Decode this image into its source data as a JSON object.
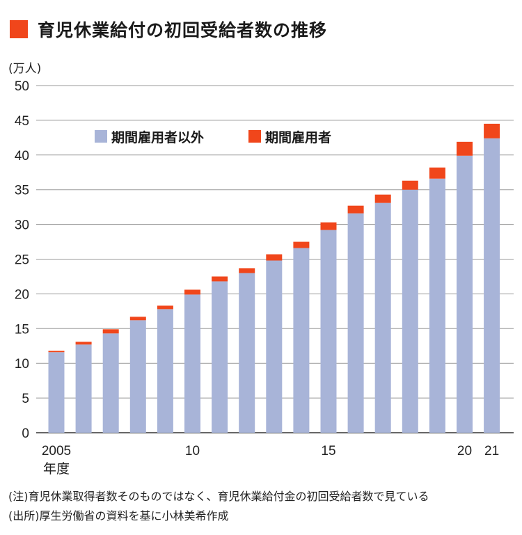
{
  "title": "育児休業給付の初回受給者数の推移",
  "notes": {
    "note1": "(注)育児休業取得者数そのものではなく、育児休業給付金の初回受給者数で見ている",
    "note2": "(出所)厚生労働省の資料を基に小林美希作成"
  },
  "colors": {
    "accent": "#f0461b",
    "non_fixed_term": "#a8b4d8",
    "fixed_term": "#f0461b"
  },
  "chart_data": {
    "type": "bar",
    "stacked": true,
    "title": "育児休業給付の初回受給者数の推移",
    "ylabel": "(万人)",
    "xlabel": "",
    "ylim": [
      0,
      50
    ],
    "yticks": [
      "0",
      "5",
      "10",
      "15",
      "20",
      "25",
      "30",
      "35",
      "40",
      "45",
      "50"
    ],
    "grid": true,
    "legend_position": "top-left",
    "categories": [
      "2005",
      "2006",
      "2007",
      "2008",
      "2009",
      "2010",
      "2011",
      "2012",
      "2013",
      "2014",
      "2015",
      "2016",
      "2017",
      "2018",
      "2019",
      "2020",
      "2021"
    ],
    "x_tick_labels": [
      {
        "index": 0,
        "label": "2005",
        "sub": "年度"
      },
      {
        "index": 5,
        "label": "10",
        "sub": ""
      },
      {
        "index": 10,
        "label": "15",
        "sub": ""
      },
      {
        "index": 15,
        "label": "20",
        "sub": ""
      },
      {
        "index": 16,
        "label": "21",
        "sub": ""
      }
    ],
    "series": [
      {
        "name": "期間雇用者以外",
        "color": "#a8b4d8",
        "values": [
          11.6,
          12.7,
          14.3,
          16.2,
          17.8,
          19.9,
          21.8,
          23.0,
          24.8,
          26.6,
          29.2,
          31.6,
          33.1,
          35.0,
          36.6,
          39.9,
          42.4
        ]
      },
      {
        "name": "期間雇用者",
        "color": "#f0461b",
        "values": [
          0.2,
          0.4,
          0.6,
          0.5,
          0.5,
          0.7,
          0.7,
          0.7,
          0.9,
          0.9,
          1.1,
          1.1,
          1.2,
          1.3,
          1.6,
          2.0,
          2.1
        ]
      }
    ]
  }
}
